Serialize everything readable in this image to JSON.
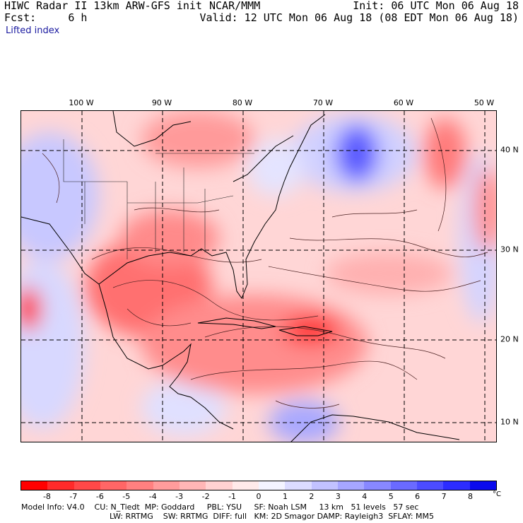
{
  "header": {
    "model": "HIWC Radar II 13km ARW-GFS init",
    "fcst_label": "Fcst:",
    "fcst_value": "6 h",
    "org": "NCAR/MMM",
    "init": "Init: 06 UTC Mon 06 Aug 18",
    "valid": "Valid: 12 UTC Mon 06 Aug 18 (08 EDT Mon 06 Aug 18)"
  },
  "field_name": "Lifted index",
  "longitudes": [
    "100 W",
    "90 W",
    "80 W",
    "70 W",
    "60 W",
    "50 W"
  ],
  "latitudes": [
    "40 N",
    "30 N",
    "20 N",
    "10 N"
  ],
  "colorbar": {
    "colors": [
      "#ff0000",
      "#ff2a2a",
      "#ff4848",
      "#ff6666",
      "#ff8080",
      "#ff9c9c",
      "#ffb6b6",
      "#ffd2d2",
      "#ffeaea",
      "#f4f4ff",
      "#dcdcff",
      "#c2c2ff",
      "#a6a6ff",
      "#8888ff",
      "#6a6aff",
      "#4c4cff",
      "#2c2cff",
      "#0a0aee"
    ],
    "labels": [
      "-8",
      "-7",
      "-6",
      "-5",
      "-4",
      "-3",
      "-2",
      "-1",
      "0",
      "1",
      "2",
      "3",
      "4",
      "5",
      "6",
      "7",
      "8"
    ],
    "unit": "°C"
  },
  "footer": {
    "line1": "Model Info: V4.0    CU: N_Tiedt  MP: Goddard     PBL: YSU     SF: Noah LSM     13 km   51 levels   57 sec",
    "line2": "LW: RRTMG    SW: RRTMG  DIFF: full   KM: 2D Smagor DAMP: Rayleigh3  SFLAY: MM5"
  }
}
